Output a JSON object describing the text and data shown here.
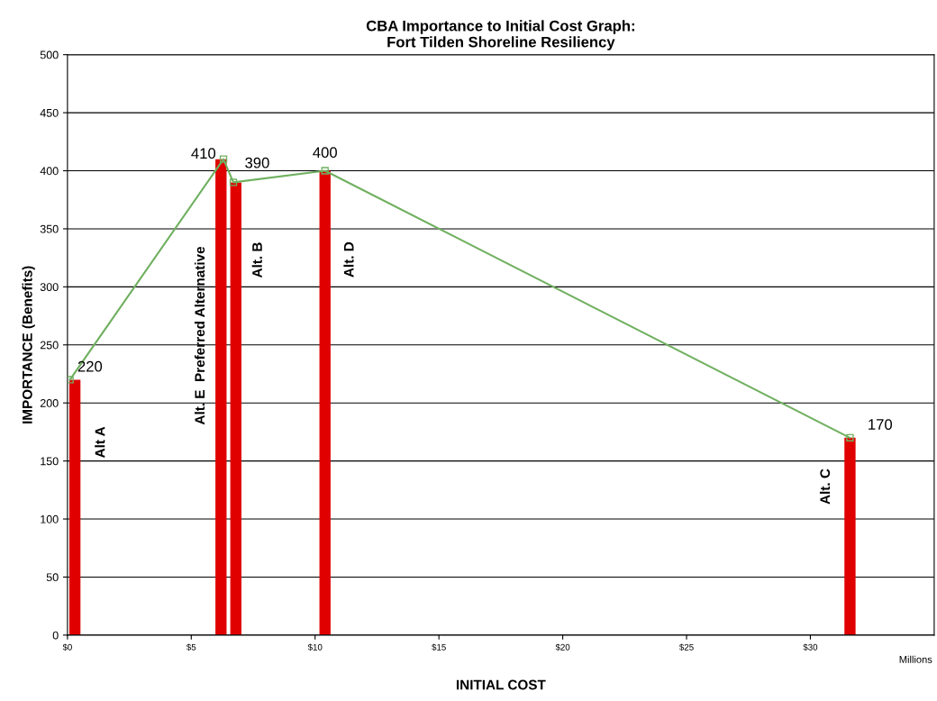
{
  "chart_data": {
    "type": "bar",
    "title": "CBA Importance to Initial Cost Graph:\nFort Tilden Shoreline Resiliency",
    "xlabel": "INITIAL COST",
    "ylabel": "IMPORTANCE (Benefits)",
    "series": [
      {
        "color": "#e00000",
        "x": [
          0.3,
          6.2,
          6.8,
          10.4,
          31.6
        ],
        "values": [
          220,
          410,
          390,
          400,
          170
        ]
      },
      {
        "type": "line",
        "color": "#70b060",
        "x": [
          0.1,
          6.3,
          6.7,
          10.4,
          31.6
        ],
        "values": [
          220,
          410,
          390,
          400,
          170
        ],
        "value_labels": [
          "220",
          "410",
          "390",
          "400",
          "170"
        ],
        "marker": "square"
      }
    ],
    "annotations": [
      "Alt A",
      "Alt. E  Preferred Alternative",
      "Alt. B",
      "Alt. D",
      "Alt. C",
      "Millions"
    ],
    "xlim": [
      0,
      35
    ],
    "xticks": [
      {
        "value": 0,
        "label": "$0"
      },
      {
        "value": 5,
        "label": "$5"
      },
      {
        "value": 10,
        "label": "$10"
      },
      {
        "value": 15,
        "label": "$15"
      },
      {
        "value": 20,
        "label": "$20"
      },
      {
        "value": 25,
        "label": "$25"
      },
      {
        "value": 30,
        "label": "$30"
      }
    ],
    "ylim": [
      0,
      500
    ],
    "yticks": [
      0,
      50,
      100,
      150,
      200,
      250,
      300,
      350,
      400,
      450,
      500
    ],
    "grid": "y"
  }
}
